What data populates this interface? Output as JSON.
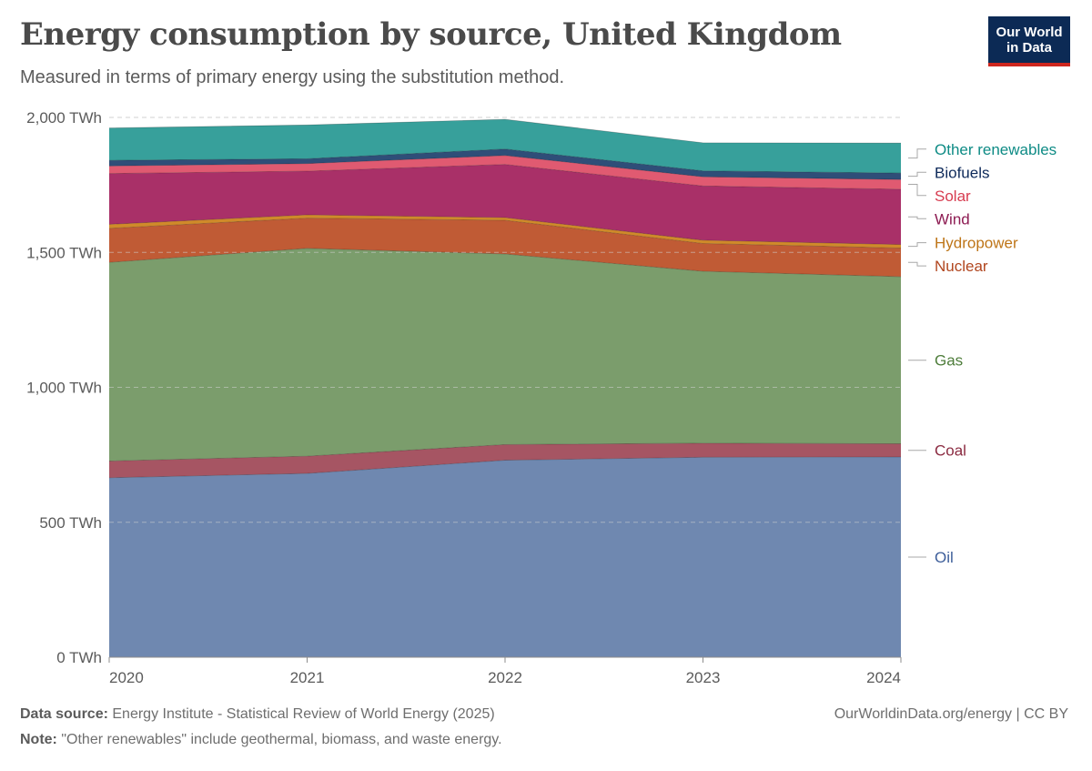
{
  "header": {
    "title": "Energy consumption by source, United Kingdom",
    "subtitle": "Measured in terms of primary energy using the substitution method."
  },
  "logo": {
    "line1": "Our World",
    "line2": "in Data"
  },
  "footer": {
    "source_label": "Data source:",
    "source_text": "Energy Institute - Statistical Review of World Energy (2025)",
    "note_label": "Note:",
    "note_text": "\"Other renewables\" include geothermal, biomass, and waste energy.",
    "credit": "OurWorldinData.org/energy | CC BY"
  },
  "chart_data": {
    "type": "area",
    "stacked": true,
    "x": [
      "2020",
      "2021",
      "2022",
      "2023",
      "2024"
    ],
    "ylim": [
      0,
      2000
    ],
    "y_ticks": [
      {
        "value": 0,
        "label": "0 TWh"
      },
      {
        "value": 500,
        "label": "500 TWh"
      },
      {
        "value": 1000,
        "label": "1,000 TWh"
      },
      {
        "value": 1500,
        "label": "1,500 TWh"
      },
      {
        "value": 2000,
        "label": "2,000 TWh"
      }
    ],
    "grid": "horizontal dashed",
    "legend": "right, end-of-series labels",
    "series": [
      {
        "name": "Oil",
        "color": "#6f88b0",
        "label_color": "#3d5e9a",
        "values": [
          665,
          681,
          730,
          741,
          742
        ]
      },
      {
        "name": "Coal",
        "color": "#a65563",
        "label_color": "#8b2b41",
        "values": [
          62,
          64,
          58,
          52,
          49
        ]
      },
      {
        "name": "Gas",
        "color": "#7b9d6c",
        "label_color": "#4e7d3b",
        "values": [
          736,
          770,
          706,
          637,
          619
        ]
      },
      {
        "name": "Nuclear",
        "color": "#c05b35",
        "label_color": "#b1461f",
        "values": [
          126,
          112,
          125,
          103,
          106
        ]
      },
      {
        "name": "Hydropower",
        "color": "#d08a2a",
        "label_color": "#be7518",
        "values": [
          15,
          12,
          10,
          12,
          13
        ]
      },
      {
        "name": "Wind",
        "color": "#a93068",
        "label_color": "#8d1b52",
        "values": [
          188,
          162,
          197,
          201,
          205
        ]
      },
      {
        "name": "Solar",
        "color": "#e05a71",
        "label_color": "#d73c50",
        "values": [
          28,
          28,
          33,
          34,
          36
        ]
      },
      {
        "name": "Biofuels",
        "color": "#2f4e78",
        "label_color": "#0e2a5a",
        "values": [
          21,
          18,
          24,
          22,
          24
        ]
      },
      {
        "name": "Other renewables",
        "color": "#37a09b",
        "label_color": "#0e8b85",
        "values": [
          120,
          125,
          110,
          104,
          111
        ]
      }
    ]
  }
}
